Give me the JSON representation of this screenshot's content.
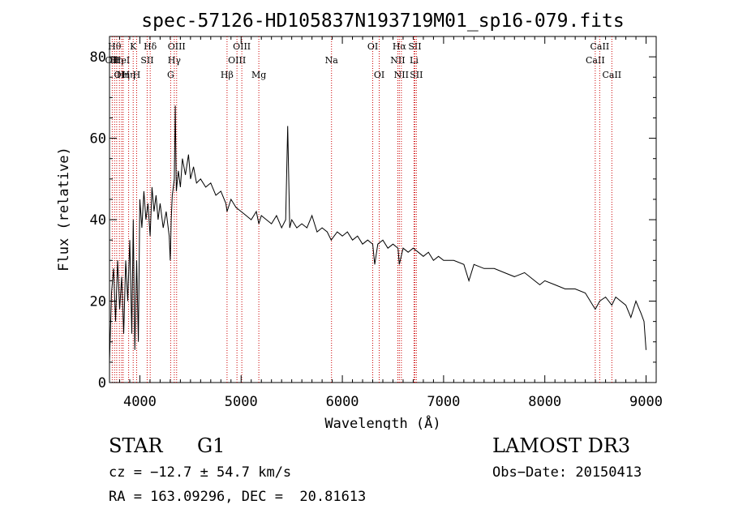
{
  "chart_data": {
    "type": "line",
    "title": "spec-57126-HD105837N193719M01_sp16-079.fits",
    "xlabel": "Wavelength (Å)",
    "ylabel": "Flux (relative)",
    "xlim": [
      3700,
      9100
    ],
    "ylim": [
      0,
      85
    ],
    "xticks": [
      4000,
      5000,
      6000,
      7000,
      8000,
      9000
    ],
    "yticks": [
      0,
      20,
      40,
      60,
      80
    ],
    "grid": false,
    "series": [
      {
        "name": "spectrum",
        "x": [
          3700,
          3720,
          3740,
          3760,
          3780,
          3800,
          3820,
          3840,
          3860,
          3880,
          3900,
          3920,
          3935,
          3950,
          3968,
          3985,
          4000,
          4020,
          4040,
          4060,
          4080,
          4101,
          4120,
          4140,
          4160,
          4180,
          4200,
          4230,
          4260,
          4290,
          4300,
          4310,
          4320,
          4340,
          4350,
          4360,
          4380,
          4400,
          4420,
          4450,
          4480,
          4500,
          4530,
          4560,
          4600,
          4650,
          4700,
          4750,
          4800,
          4850,
          4861,
          4900,
          4950,
          5000,
          5050,
          5100,
          5150,
          5175,
          5200,
          5250,
          5300,
          5350,
          5400,
          5440,
          5460,
          5480,
          5500,
          5550,
          5600,
          5650,
          5700,
          5750,
          5800,
          5850,
          5890,
          5950,
          6000,
          6050,
          6100,
          6150,
          6200,
          6250,
          6300,
          6320,
          6350,
          6400,
          6450,
          6500,
          6550,
          6563,
          6600,
          6650,
          6700,
          6750,
          6800,
          6850,
          6900,
          6950,
          7000,
          7100,
          7200,
          7250,
          7300,
          7400,
          7500,
          7600,
          7700,
          7800,
          7900,
          7950,
          8000,
          8100,
          8200,
          8300,
          8400,
          8498,
          8542,
          8600,
          8662,
          8700,
          8800,
          8850,
          8900,
          8950,
          8980,
          9000
        ],
        "values": [
          5,
          22,
          28,
          15,
          30,
          18,
          26,
          12,
          30,
          20,
          35,
          12,
          40,
          8,
          30,
          10,
          45,
          38,
          47,
          40,
          44,
          36,
          48,
          42,
          46,
          40,
          44,
          38,
          42,
          36,
          30,
          40,
          46,
          50,
          68,
          47,
          52,
          48,
          55,
          51,
          56,
          50,
          53,
          49,
          50,
          48,
          49,
          46,
          47,
          44,
          42,
          45,
          43,
          42,
          41,
          40,
          42,
          39,
          41,
          40,
          39,
          41,
          38,
          40,
          63,
          38,
          40,
          38,
          39,
          38,
          41,
          37,
          38,
          37,
          35,
          37,
          36,
          37,
          35,
          36,
          34,
          35,
          34,
          29,
          34,
          35,
          33,
          34,
          33,
          29,
          33,
          32,
          33,
          32,
          31,
          32,
          30,
          31,
          30,
          30,
          29,
          25,
          29,
          28,
          28,
          27,
          26,
          27,
          25,
          24,
          25,
          24,
          23,
          23,
          22,
          18,
          20,
          21,
          19,
          21,
          19,
          16,
          20,
          17,
          15,
          8
        ],
        "color": "#000000"
      }
    ],
    "lines": [
      {
        "wavelength": 3727,
        "label": "OII",
        "row": 1
      },
      {
        "wavelength": 3750,
        "label": "Hθ",
        "row": 0
      },
      {
        "wavelength": 3771,
        "label": "Hη",
        "row": 1
      },
      {
        "wavelength": 3798,
        "label": "OI",
        "row": 2
      },
      {
        "wavelength": 3820,
        "label": "HeI",
        "row": 1
      },
      {
        "wavelength": 3835,
        "label": "Hη",
        "row": 2
      },
      {
        "wavelength": 3889,
        "label": "Hη",
        "row": 2
      },
      {
        "wavelength": 3934,
        "label": "K",
        "row": 0
      },
      {
        "wavelength": 3968,
        "label": "H",
        "row": 2
      },
      {
        "wavelength": 4072,
        "label": "SII",
        "row": 1
      },
      {
        "wavelength": 4102,
        "label": "Hδ",
        "row": 0
      },
      {
        "wavelength": 4304,
        "label": "G",
        "row": 2
      },
      {
        "wavelength": 4340,
        "label": "Hγ",
        "row": 1
      },
      {
        "wavelength": 4363,
        "label": "OIII",
        "row": 0
      },
      {
        "wavelength": 4861,
        "label": "Hβ",
        "row": 2
      },
      {
        "wavelength": 4959,
        "label": "OIII",
        "row": 1
      },
      {
        "wavelength": 5007,
        "label": "OIII",
        "row": 0
      },
      {
        "wavelength": 5175,
        "label": "Mg",
        "row": 2
      },
      {
        "wavelength": 5893,
        "label": "Na",
        "row": 1
      },
      {
        "wavelength": 6300,
        "label": "OI",
        "row": 0
      },
      {
        "wavelength": 6364,
        "label": "OI",
        "row": 2
      },
      {
        "wavelength": 6548,
        "label": "NII",
        "row": 1
      },
      {
        "wavelength": 6563,
        "label": "Hα",
        "row": 0
      },
      {
        "wavelength": 6583,
        "label": "NII",
        "row": 2
      },
      {
        "wavelength": 6708,
        "label": "Li",
        "row": 1
      },
      {
        "wavelength": 6716,
        "label": "SII",
        "row": 0
      },
      {
        "wavelength": 6731,
        "label": "SII",
        "row": 2
      },
      {
        "wavelength": 8498,
        "label": "CaII",
        "row": 1
      },
      {
        "wavelength": 8542,
        "label": "CaII",
        "row": 0
      },
      {
        "wavelength": 8662,
        "label": "CaII",
        "row": 2
      }
    ]
  },
  "footer": {
    "object_type": "STAR",
    "subclass": "G1",
    "survey": "LAMOST DR3",
    "redshift": "cz = −12.7 ± 54.7 km/s",
    "obs_date": "Obs−Date: 20150413",
    "coordinates": "RA = 163.09296, DEC =  20.81613"
  }
}
